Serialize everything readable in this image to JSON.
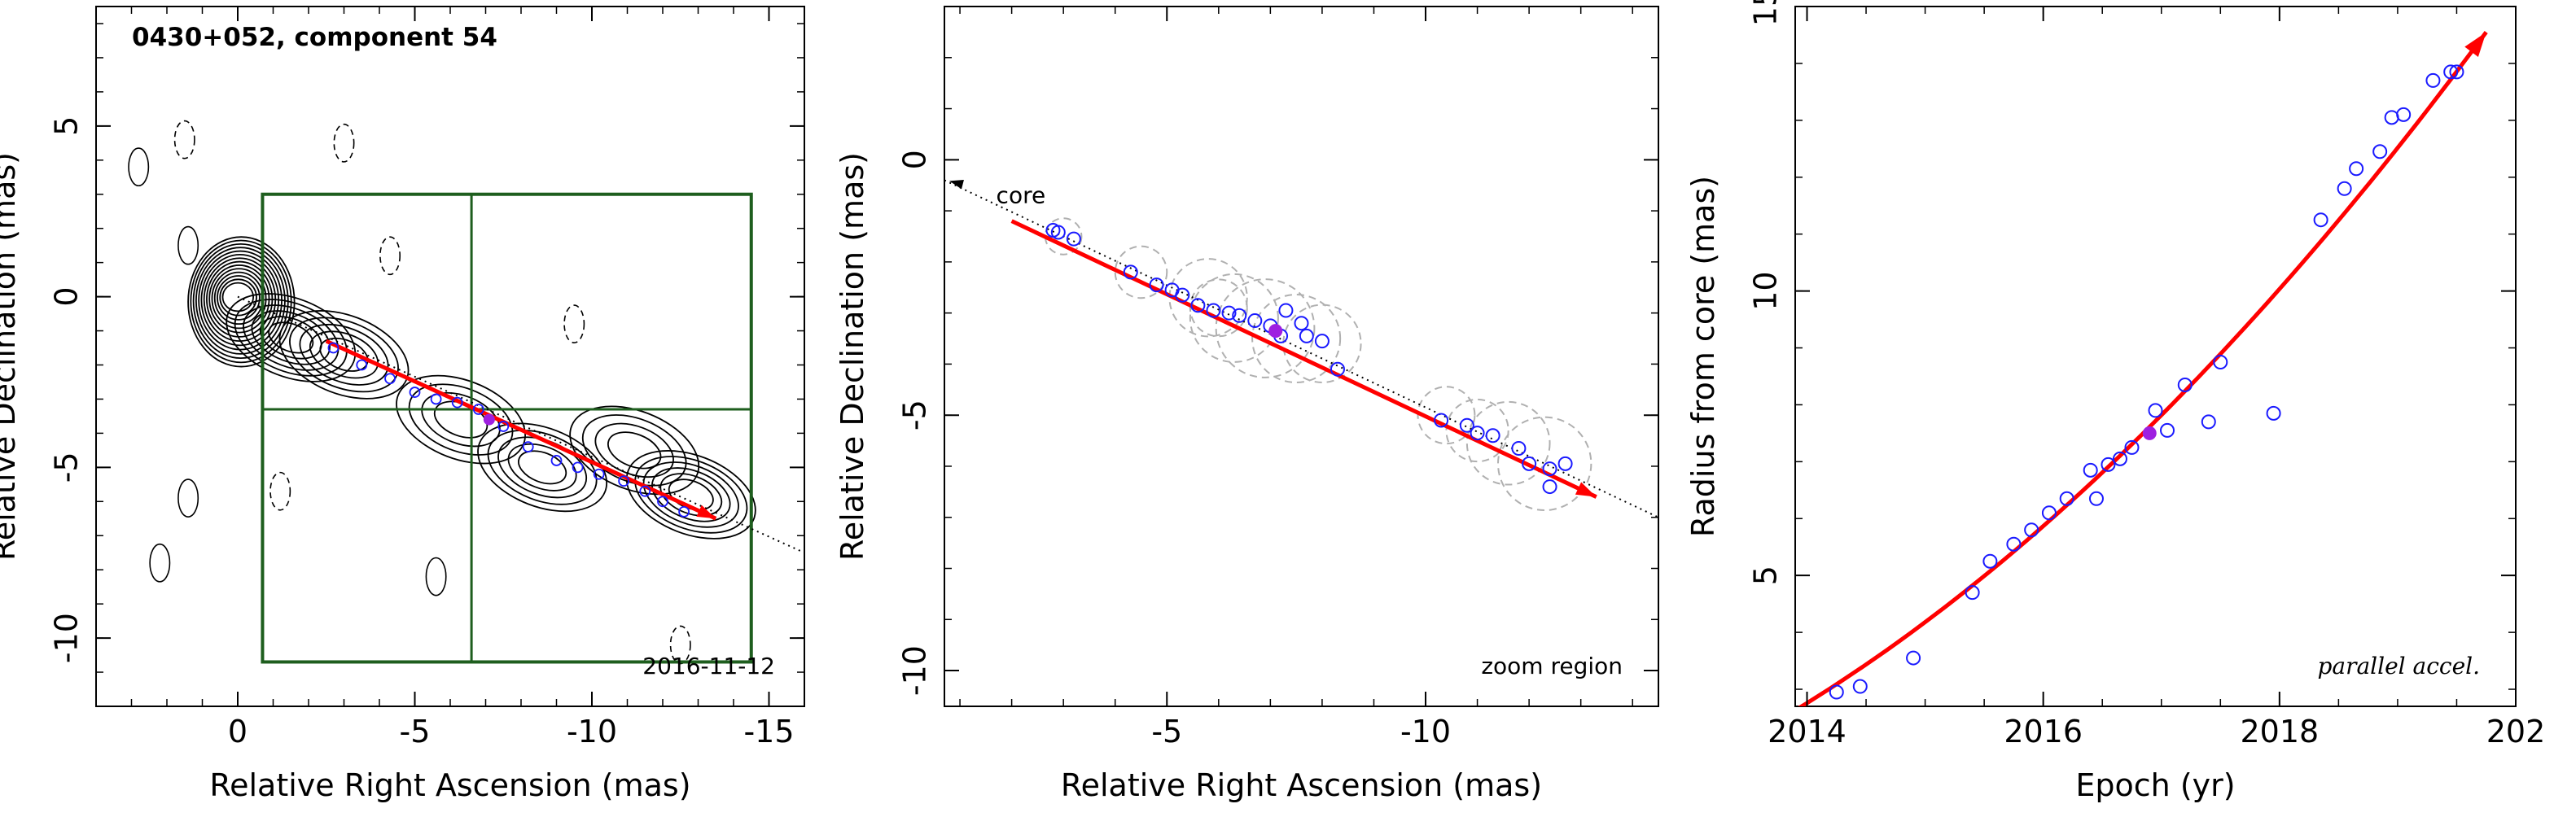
{
  "chart_data": [
    {
      "type": "scatter",
      "panel": "contour map",
      "title": "0430+052, component 54",
      "xlabel": "Relative Right Ascension (mas)",
      "ylabel": "Relative Declination (mas)",
      "xlim": [
        4,
        -16
      ],
      "ylim": [
        -12,
        8.5
      ],
      "x_ticks": [
        0,
        -5,
        -10,
        -15
      ],
      "y_ticks": [
        5,
        0,
        -5,
        -10
      ],
      "date_label": "2016-11-12",
      "contours": {
        "core": {
          "center": [
            0,
            0
          ],
          "levels": 14
        },
        "jet": {
          "from": [
            -1.5,
            -1.2
          ],
          "to": [
            -13,
            -5.8
          ]
        },
        "knots": [
          {
            "center": [
              -1.5,
              -1.2
            ],
            "levels": 6
          },
          {
            "center": [
              -3.0,
              -1.7
            ],
            "levels": 5
          },
          {
            "center": [
              -6.3,
              -3.6
            ],
            "levels": 4
          },
          {
            "center": [
              -8.6,
              -5.0
            ],
            "levels": 5
          },
          {
            "center": [
              -11.2,
              -4.5
            ],
            "levels": 4
          },
          {
            "center": [
              -12.8,
              -5.8
            ],
            "levels": 6
          }
        ]
      },
      "noise_contours": [
        {
          "center": [
            2.8,
            3.8
          ],
          "style": "solid"
        },
        {
          "center": [
            1.4,
            1.5
          ],
          "style": "solid"
        },
        {
          "center": [
            1.5,
            4.6
          ],
          "style": "dashed"
        },
        {
          "center": [
            -3.0,
            4.5
          ],
          "style": "dashed"
        },
        {
          "center": [
            -4.3,
            1.2
          ],
          "style": "dashed"
        },
        {
          "center": [
            -9.5,
            -0.8
          ],
          "style": "dashed"
        },
        {
          "center": [
            -1.2,
            -5.7
          ],
          "style": "dashed"
        },
        {
          "center": [
            -5.6,
            -8.2
          ],
          "style": "solid"
        },
        {
          "center": [
            2.2,
            -7.8
          ],
          "style": "solid"
        },
        {
          "center": [
            1.4,
            -5.9
          ],
          "style": "solid"
        },
        {
          "center": [
            -12.5,
            -10.2
          ],
          "style": "dashed"
        }
      ],
      "zoom_box": {
        "x": [
          -0.7,
          -14.5
        ],
        "y": [
          3.0,
          -10.7
        ],
        "grid_x": -6.6,
        "grid_y": -3.3
      },
      "trajectory": {
        "from": [
          -2.5,
          -1.3
        ],
        "to": [
          -13.5,
          -6.5
        ],
        "dotted_from": [
          0,
          0
        ],
        "dotted_to": [
          -16,
          -7.5
        ]
      },
      "points": [
        [
          -2.7,
          -1.5
        ],
        [
          -3.5,
          -2.0
        ],
        [
          -4.3,
          -2.4
        ],
        [
          -5.0,
          -2.8
        ],
        [
          -5.6,
          -3.0
        ],
        [
          -6.2,
          -3.1
        ],
        [
          -6.8,
          -3.3
        ],
        [
          -7.5,
          -3.8
        ],
        [
          -8.2,
          -4.4
        ],
        [
          -9.0,
          -4.8
        ],
        [
          -9.6,
          -5.0
        ],
        [
          -10.2,
          -5.2
        ],
        [
          -10.9,
          -5.4
        ],
        [
          -11.5,
          -5.7
        ],
        [
          -12.0,
          -6.0
        ],
        [
          -12.6,
          -6.3
        ]
      ],
      "filled_point": [
        -7.1,
        -3.6
      ]
    },
    {
      "type": "scatter",
      "panel": "zoom region",
      "xlabel": "Relative Right Ascension (mas)",
      "ylabel": "Relative Declination (mas)",
      "xlim": [
        -0.7,
        -14.5
      ],
      "ylim": [
        -10.7,
        3.0
      ],
      "x_ticks": [
        -5,
        -10
      ],
      "y_ticks": [
        0,
        -5,
        -10
      ],
      "core_label": "core",
      "corner_label": "zoom region",
      "trajectory": {
        "from": [
          -2.0,
          -1.2
        ],
        "to": [
          -13.3,
          -6.6
        ],
        "dotted_from": [
          -0.7,
          -0.4
        ],
        "dotted_to": [
          -14.5,
          -7.0
        ]
      },
      "points": [
        [
          -2.8,
          -1.38
        ],
        [
          -2.9,
          -1.42
        ],
        [
          -3.2,
          -1.55
        ],
        [
          -4.3,
          -2.2
        ],
        [
          -4.8,
          -2.45
        ],
        [
          -5.1,
          -2.55
        ],
        [
          -5.3,
          -2.65
        ],
        [
          -5.6,
          -2.85
        ],
        [
          -5.9,
          -2.95
        ],
        [
          -6.2,
          -3.0
        ],
        [
          -6.4,
          -3.05
        ],
        [
          -6.7,
          -3.15
        ],
        [
          -7.0,
          -3.25
        ],
        [
          -7.3,
          -2.95
        ],
        [
          -7.2,
          -3.45
        ],
        [
          -7.6,
          -3.2
        ],
        [
          -7.7,
          -3.45
        ],
        [
          -8.0,
          -3.55
        ],
        [
          -8.3,
          -4.1
        ],
        [
          -10.3,
          -5.1
        ],
        [
          -10.8,
          -5.2
        ],
        [
          -11.0,
          -5.35
        ],
        [
          -11.3,
          -5.4
        ],
        [
          -11.8,
          -5.65
        ],
        [
          -12.0,
          -5.95
        ],
        [
          -12.4,
          -6.05
        ],
        [
          -12.4,
          -6.4
        ],
        [
          -12.7,
          -5.95
        ]
      ],
      "filled_point": [
        -7.1,
        -3.35
      ],
      "error_circles": [
        {
          "center": [
            -3.0,
            -1.5
          ],
          "r": 0.35
        },
        {
          "center": [
            -4.5,
            -2.2
          ],
          "r": 0.5
        },
        {
          "center": [
            -5.8,
            -2.7
          ],
          "r": 0.75
        },
        {
          "center": [
            -6.3,
            -3.1
          ],
          "r": 0.85
        },
        {
          "center": [
            -6.9,
            -3.3
          ],
          "r": 0.95
        },
        {
          "center": [
            -7.5,
            -3.5
          ],
          "r": 0.85
        },
        {
          "center": [
            -8.0,
            -3.6
          ],
          "r": 0.75
        },
        {
          "center": [
            -6.0,
            -2.9
          ],
          "r": 0.55
        },
        {
          "center": [
            -10.4,
            -5.0
          ],
          "r": 0.55
        },
        {
          "center": [
            -11.0,
            -5.3
          ],
          "r": 0.6
        },
        {
          "center": [
            -11.6,
            -5.55
          ],
          "r": 0.8
        },
        {
          "center": [
            -12.3,
            -5.95
          ],
          "r": 0.9
        }
      ]
    },
    {
      "type": "scatter",
      "panel": "radius vs epoch",
      "xlabel": "Epoch (yr)",
      "ylabel": "Radius from core (mas)",
      "xlim": [
        2013.9,
        2020.0
      ],
      "ylim": [
        2.7,
        15.0
      ],
      "x_ticks": [
        "2014",
        "2016",
        "2018",
        "202"
      ],
      "y_ticks": [
        5,
        10,
        15
      ],
      "corner_label": "parallel accel.",
      "fit": {
        "type": "quadratic",
        "x": [
          2013.9,
          2019.75
        ],
        "y": [
          2.63,
          14.55
        ]
      },
      "points": [
        [
          2014.25,
          2.95
        ],
        [
          2014.45,
          3.05
        ],
        [
          2014.9,
          3.55
        ],
        [
          2015.4,
          4.7
        ],
        [
          2015.55,
          5.25
        ],
        [
          2015.75,
          5.55
        ],
        [
          2015.9,
          5.8
        ],
        [
          2016.05,
          6.1
        ],
        [
          2016.2,
          6.35
        ],
        [
          2016.4,
          6.85
        ],
        [
          2016.45,
          6.35
        ],
        [
          2016.55,
          6.95
        ],
        [
          2016.65,
          7.05
        ],
        [
          2016.75,
          7.25
        ],
        [
          2016.95,
          7.9
        ],
        [
          2017.05,
          7.55
        ],
        [
          2017.2,
          8.35
        ],
        [
          2017.4,
          7.7
        ],
        [
          2017.5,
          8.75
        ],
        [
          2017.95,
          7.85
        ],
        [
          2018.35,
          11.25
        ],
        [
          2018.55,
          11.8
        ],
        [
          2018.65,
          12.15
        ],
        [
          2018.85,
          12.45
        ],
        [
          2018.95,
          13.05
        ],
        [
          2019.05,
          13.1
        ],
        [
          2019.3,
          13.7
        ],
        [
          2019.45,
          13.85
        ],
        [
          2019.5,
          13.85
        ]
      ],
      "filled_point": [
        2016.9,
        7.5
      ]
    }
  ],
  "colors": {
    "axis": "#000000",
    "trajectory": "#ff0000",
    "points": "#1a1aff",
    "filled_point": "#9e1fe0",
    "zoom_box": "#1e5e1e",
    "error_circles": "#b0b0b0",
    "contours": "#000000"
  }
}
